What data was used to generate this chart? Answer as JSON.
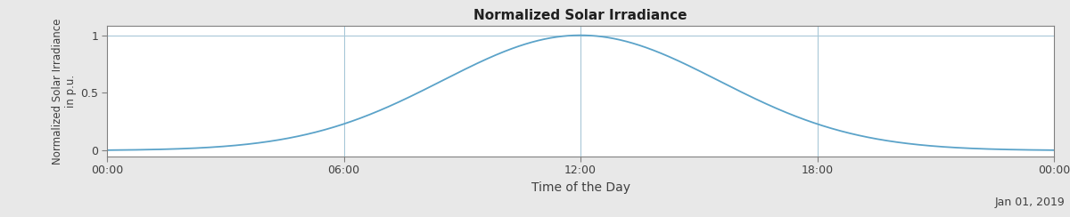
{
  "title": "Normalized Solar Irradiance",
  "xlabel": "Time of the Day",
  "ylabel": "Normalized Solar Irradiance\nin p.u.",
  "date_label": "Jan 01, 2019",
  "xlim": [
    0,
    24
  ],
  "ylim": [
    -0.05,
    1.08
  ],
  "yticks": [
    0,
    0.5,
    1
  ],
  "xticks": [
    0,
    6,
    12,
    18,
    24
  ],
  "xticklabels": [
    "00:00",
    "06:00",
    "12:00",
    "18:00",
    "00:00"
  ],
  "line_color": "#5ba3c9",
  "line_width": 1.3,
  "bg_color": "#e8e8e8",
  "plot_bg_color": "#ffffff",
  "grid_color": "#a8c8d8",
  "peak_hour": 12,
  "sigma": 3.5
}
